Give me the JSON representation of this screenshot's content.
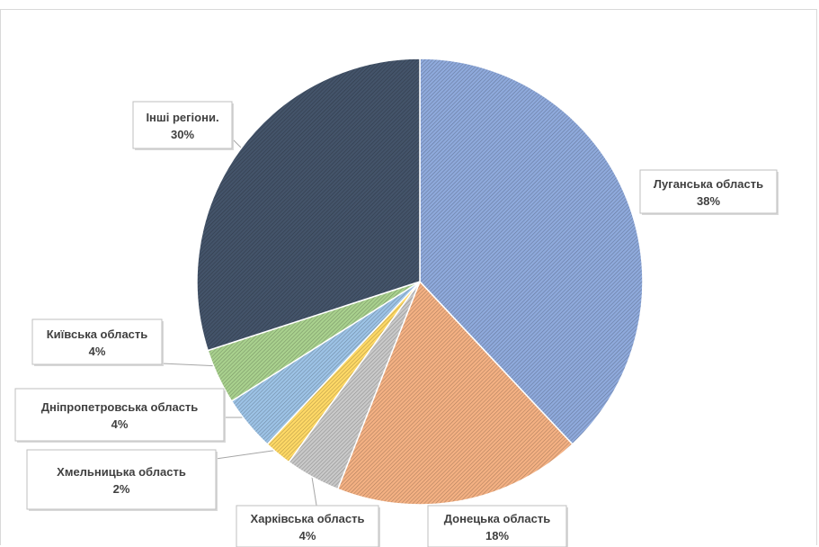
{
  "chart_data": {
    "type": "pie",
    "title": "",
    "series": [
      {
        "values": [
          38,
          18,
          4,
          2,
          4,
          4,
          30
        ]
      }
    ],
    "categories": [
      "Луганська область",
      "Донецька область",
      "Харківська область",
      "Хмельницька область",
      "Дніпропетровська область",
      "Київська область",
      "Інші регіони."
    ],
    "values": [
      38,
      18,
      4,
      2,
      4,
      4,
      30
    ],
    "labels": [
      "38%",
      "18%",
      "4%",
      "2%",
      "4%",
      "4%",
      "30%"
    ],
    "colors": [
      "#8faadc",
      "#f4b183",
      "#c9c9c9",
      "#ffd966",
      "#9dc3e6",
      "#a9d18e",
      "#44546a"
    ],
    "fill_pattern": "hatched",
    "legend": "none",
    "data_labels": "callouts"
  }
}
